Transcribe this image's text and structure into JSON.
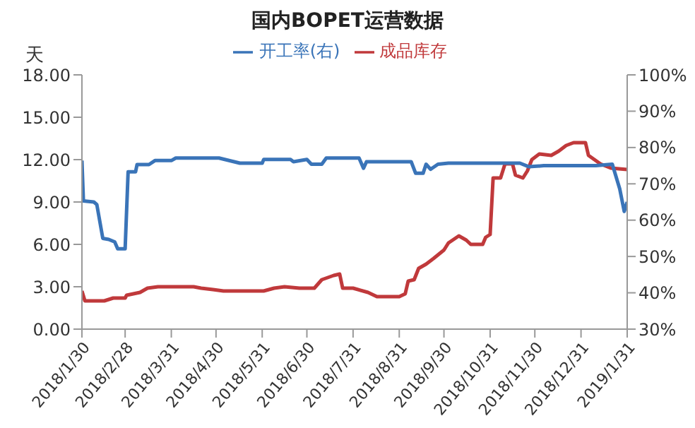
{
  "chart_data": {
    "type": "line",
    "title": "国内BOPET运营数据",
    "ylabel": "天",
    "legend": "top",
    "grid": false,
    "marker": "none",
    "line_style": "solid",
    "xlim": [
      "2018-01-30",
      "2019-01-31"
    ],
    "xticks": [
      {
        "value": "2018-01-30",
        "label": "2018/1/30"
      },
      {
        "value": "2018-02-28",
        "label": "2018/2/28"
      },
      {
        "value": "2018-03-31",
        "label": "2018/3/31"
      },
      {
        "value": "2018-04-30",
        "label": "2018/4/30"
      },
      {
        "value": "2018-05-31",
        "label": "2018/5/31"
      },
      {
        "value": "2018-06-30",
        "label": "2018/6/30"
      },
      {
        "value": "2018-07-31",
        "label": "2018/7/31"
      },
      {
        "value": "2018-08-31",
        "label": "2018/8/31"
      },
      {
        "value": "2018-09-30",
        "label": "2018/9/30"
      },
      {
        "value": "2018-10-31",
        "label": "2018/10/31"
      },
      {
        "value": "2018-11-30",
        "label": "2018/11/30"
      },
      {
        "value": "2018-12-31",
        "label": "2018/12/31"
      },
      {
        "value": "2019-01-31",
        "label": "2019/1/31"
      }
    ],
    "ylim": [
      0,
      18
    ],
    "yticks": [
      {
        "value": 0,
        "label": "0.00"
      },
      {
        "value": 3,
        "label": "3.00"
      },
      {
        "value": 6,
        "label": "6.00"
      },
      {
        "value": 9,
        "label": "9.00"
      },
      {
        "value": 12,
        "label": "12.00"
      },
      {
        "value": 15,
        "label": "15.00"
      },
      {
        "value": 18,
        "label": "18.00"
      }
    ],
    "y2lim": [
      30,
      100
    ],
    "y2ticks": [
      {
        "value": 30,
        "label": "30%"
      },
      {
        "value": 40,
        "label": "40%"
      },
      {
        "value": 50,
        "label": "50%"
      },
      {
        "value": 60,
        "label": "60%"
      },
      {
        "value": 70,
        "label": "70%"
      },
      {
        "value": 80,
        "label": "80%"
      },
      {
        "value": 90,
        "label": "90%"
      },
      {
        "value": 100,
        "label": "100%"
      }
    ],
    "series": [
      {
        "name": "成品库存",
        "color": "#c0393b",
        "x": [
          "2018-01-30",
          "2018-02-01",
          "2018-02-14",
          "2018-02-20",
          "2018-02-28",
          "2018-03-01",
          "2018-03-10",
          "2018-03-15",
          "2018-03-22",
          "2018-04-15",
          "2018-04-20",
          "2018-04-28",
          "2018-05-05",
          "2018-06-01",
          "2018-06-08",
          "2018-06-15",
          "2018-06-25",
          "2018-07-05",
          "2018-07-10",
          "2018-07-18",
          "2018-07-22",
          "2018-07-24",
          "2018-07-31",
          "2018-08-10",
          "2018-08-16",
          "2018-08-31",
          "2018-09-04",
          "2018-09-06",
          "2018-09-10",
          "2018-09-13",
          "2018-09-18",
          "2018-09-23",
          "2018-09-30",
          "2018-10-03",
          "2018-10-10",
          "2018-10-15",
          "2018-10-18",
          "2018-10-26",
          "2018-10-28",
          "2018-10-31",
          "2018-11-02",
          "2018-11-07",
          "2018-11-10",
          "2018-11-15",
          "2018-11-17",
          "2018-11-22",
          "2018-11-25",
          "2018-11-28",
          "2018-12-03",
          "2018-12-11",
          "2018-12-16",
          "2018-12-21",
          "2018-12-26",
          "2019-01-03",
          "2019-01-05",
          "2019-01-13",
          "2019-01-20",
          "2019-01-31"
        ],
        "values": [
          2.7,
          2.0,
          2.0,
          2.2,
          2.2,
          2.4,
          2.6,
          2.9,
          3.0,
          3.0,
          2.9,
          2.8,
          2.7,
          2.7,
          2.9,
          3.0,
          2.9,
          2.9,
          3.5,
          3.8,
          3.9,
          2.9,
          2.9,
          2.6,
          2.3,
          2.3,
          2.5,
          3.4,
          3.5,
          4.3,
          4.6,
          5.0,
          5.6,
          6.1,
          6.6,
          6.3,
          6.0,
          6.0,
          6.5,
          6.7,
          10.7,
          10.7,
          11.7,
          11.7,
          10.9,
          10.7,
          11.2,
          12.0,
          12.4,
          12.3,
          12.6,
          13.0,
          13.2,
          13.2,
          12.3,
          11.7,
          11.4,
          11.3
        ]
      },
      {
        "name": "开工率(右)",
        "color": "#3a74b8",
        "axis": "y2",
        "x": [
          "2018-01-30",
          "2018-01-31",
          "2018-02-07",
          "2018-02-09",
          "2018-02-13",
          "2018-02-17",
          "2018-02-21",
          "2018-02-23",
          "2018-02-28",
          "2018-03-02",
          "2018-03-07",
          "2018-03-08",
          "2018-03-16",
          "2018-03-20",
          "2018-03-31",
          "2018-04-03",
          "2018-05-02",
          "2018-05-16",
          "2018-05-31",
          "2018-06-01",
          "2018-06-19",
          "2018-06-21",
          "2018-06-30",
          "2018-07-03",
          "2018-07-10",
          "2018-07-13",
          "2018-08-04",
          "2018-08-07",
          "2018-08-09",
          "2018-09-08",
          "2018-09-11",
          "2018-09-16",
          "2018-09-18",
          "2018-09-21",
          "2018-09-26",
          "2018-10-03",
          "2018-11-20",
          "2018-11-26",
          "2018-12-06",
          "2019-01-10",
          "2019-01-21",
          "2019-01-26",
          "2019-01-29",
          "2019-01-31"
        ],
        "values": [
          76.4,
          65.3,
          65.0,
          64.3,
          55.0,
          54.7,
          54.0,
          52.1,
          52.1,
          73.3,
          73.3,
          75.3,
          75.3,
          76.4,
          76.4,
          77.1,
          77.1,
          75.7,
          75.7,
          76.7,
          76.7,
          76.1,
          76.7,
          75.4,
          75.4,
          77.1,
          77.1,
          74.3,
          76.1,
          76.1,
          72.9,
          72.9,
          75.4,
          74.0,
          75.4,
          75.7,
          75.7,
          74.7,
          75.0,
          75.0,
          75.4,
          68.6,
          62.4,
          65.0
        ]
      }
    ]
  }
}
